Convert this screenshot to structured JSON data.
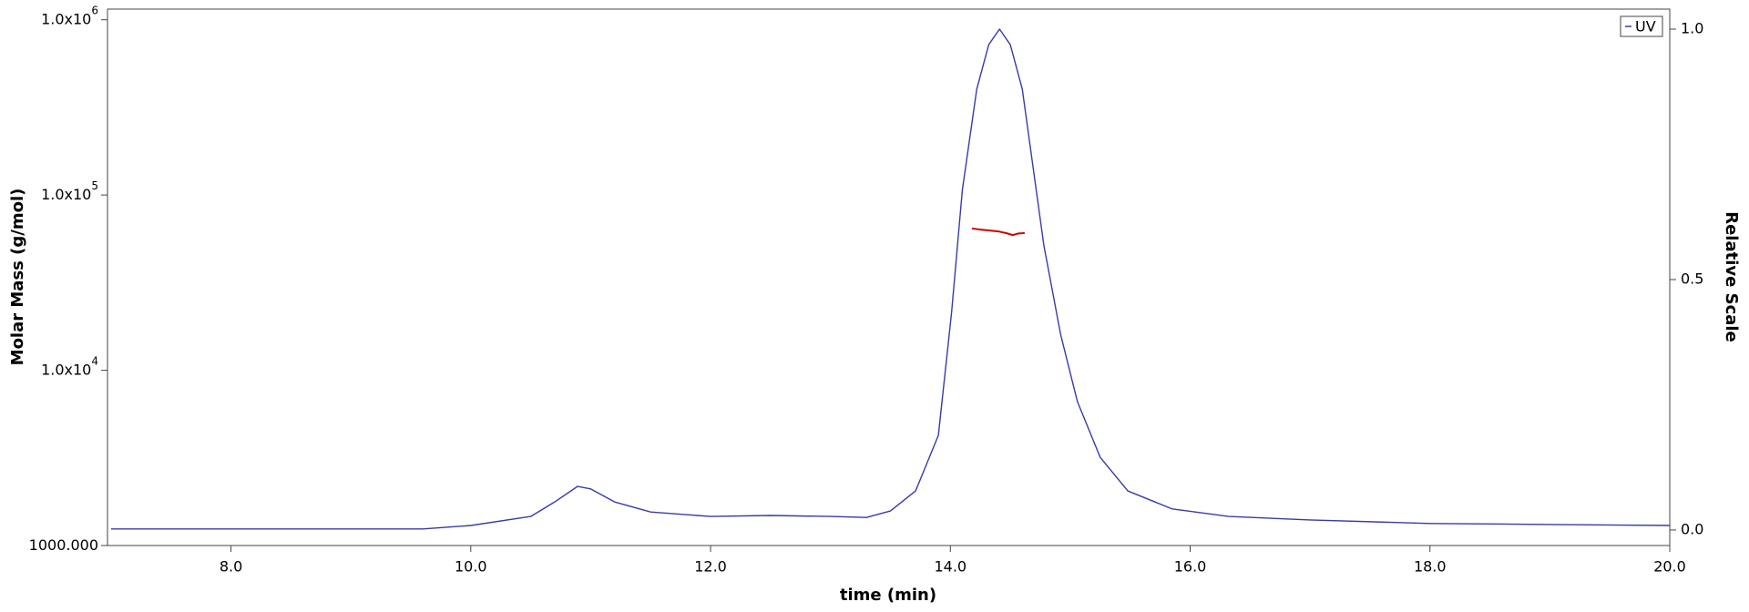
{
  "chart_data": {
    "type": "line",
    "xlabel": "time (min)",
    "ylabel": "Molar Mass (g/mol)",
    "y2label": "Relative Scale",
    "xlim": [
      6.97,
      20.0
    ],
    "xticks": [
      {
        "value": 8,
        "label": "8.0"
      },
      {
        "value": 10,
        "label": "10.0"
      },
      {
        "value": 12,
        "label": "12.0"
      },
      {
        "value": 14,
        "label": "14.0"
      },
      {
        "value": 16,
        "label": "16.0"
      },
      {
        "value": 18,
        "label": "18.0"
      },
      {
        "value": 20,
        "label": "20.0"
      }
    ],
    "ylim": [
      1000,
      1150000
    ],
    "yscale": "log",
    "yticks": [
      {
        "value": 1000,
        "label": "1000.000"
      },
      {
        "value": 10000,
        "label": "1.0x10",
        "superscript": "4"
      },
      {
        "value": 100000,
        "label": "1.0x10",
        "superscript": "5"
      },
      {
        "value": 1000000,
        "label": "1.0x10",
        "superscript": "6"
      }
    ],
    "y2lim": [
      -0.031,
      1.04
    ],
    "y2ticks": [
      {
        "value": 0,
        "label": "0.0"
      },
      0.5,
      {
        "value": 1,
        "label": "1.0"
      }
    ],
    "legend": "upper right",
    "series": [
      {
        "name": "UV",
        "color": "#3a3aa8",
        "axis": "y2",
        "x": [
          7.0,
          8.0,
          9.0,
          9.6,
          10.0,
          10.5,
          10.7,
          10.89,
          11.0,
          11.2,
          11.5,
          12.0,
          12.5,
          13.0,
          13.3,
          13.5,
          13.71,
          13.9,
          14.01,
          14.1,
          14.22,
          14.32,
          14.41,
          14.5,
          14.6,
          14.69,
          14.78,
          14.92,
          15.06,
          15.25,
          15.48,
          15.85,
          16.32,
          17.0,
          18.0,
          19.0,
          20.0
        ],
        "values": [
          0.002,
          0.002,
          0.002,
          0.002,
          0.009,
          0.027,
          0.056,
          0.087,
          0.082,
          0.056,
          0.036,
          0.027,
          0.029,
          0.027,
          0.025,
          0.038,
          0.078,
          0.189,
          0.434,
          0.679,
          0.88,
          0.969,
          1.0,
          0.969,
          0.88,
          0.724,
          0.568,
          0.39,
          0.256,
          0.145,
          0.078,
          0.042,
          0.027,
          0.02,
          0.013,
          0.011,
          0.009
        ]
      },
      {
        "color": "#cc0000",
        "axis": "y",
        "x": [
          14.18,
          14.25,
          14.32,
          14.4,
          14.47,
          14.52,
          14.56,
          14.62
        ],
        "values": [
          64400,
          63500,
          62800,
          62000,
          60500,
          59000,
          60200,
          60700
        ]
      }
    ]
  }
}
